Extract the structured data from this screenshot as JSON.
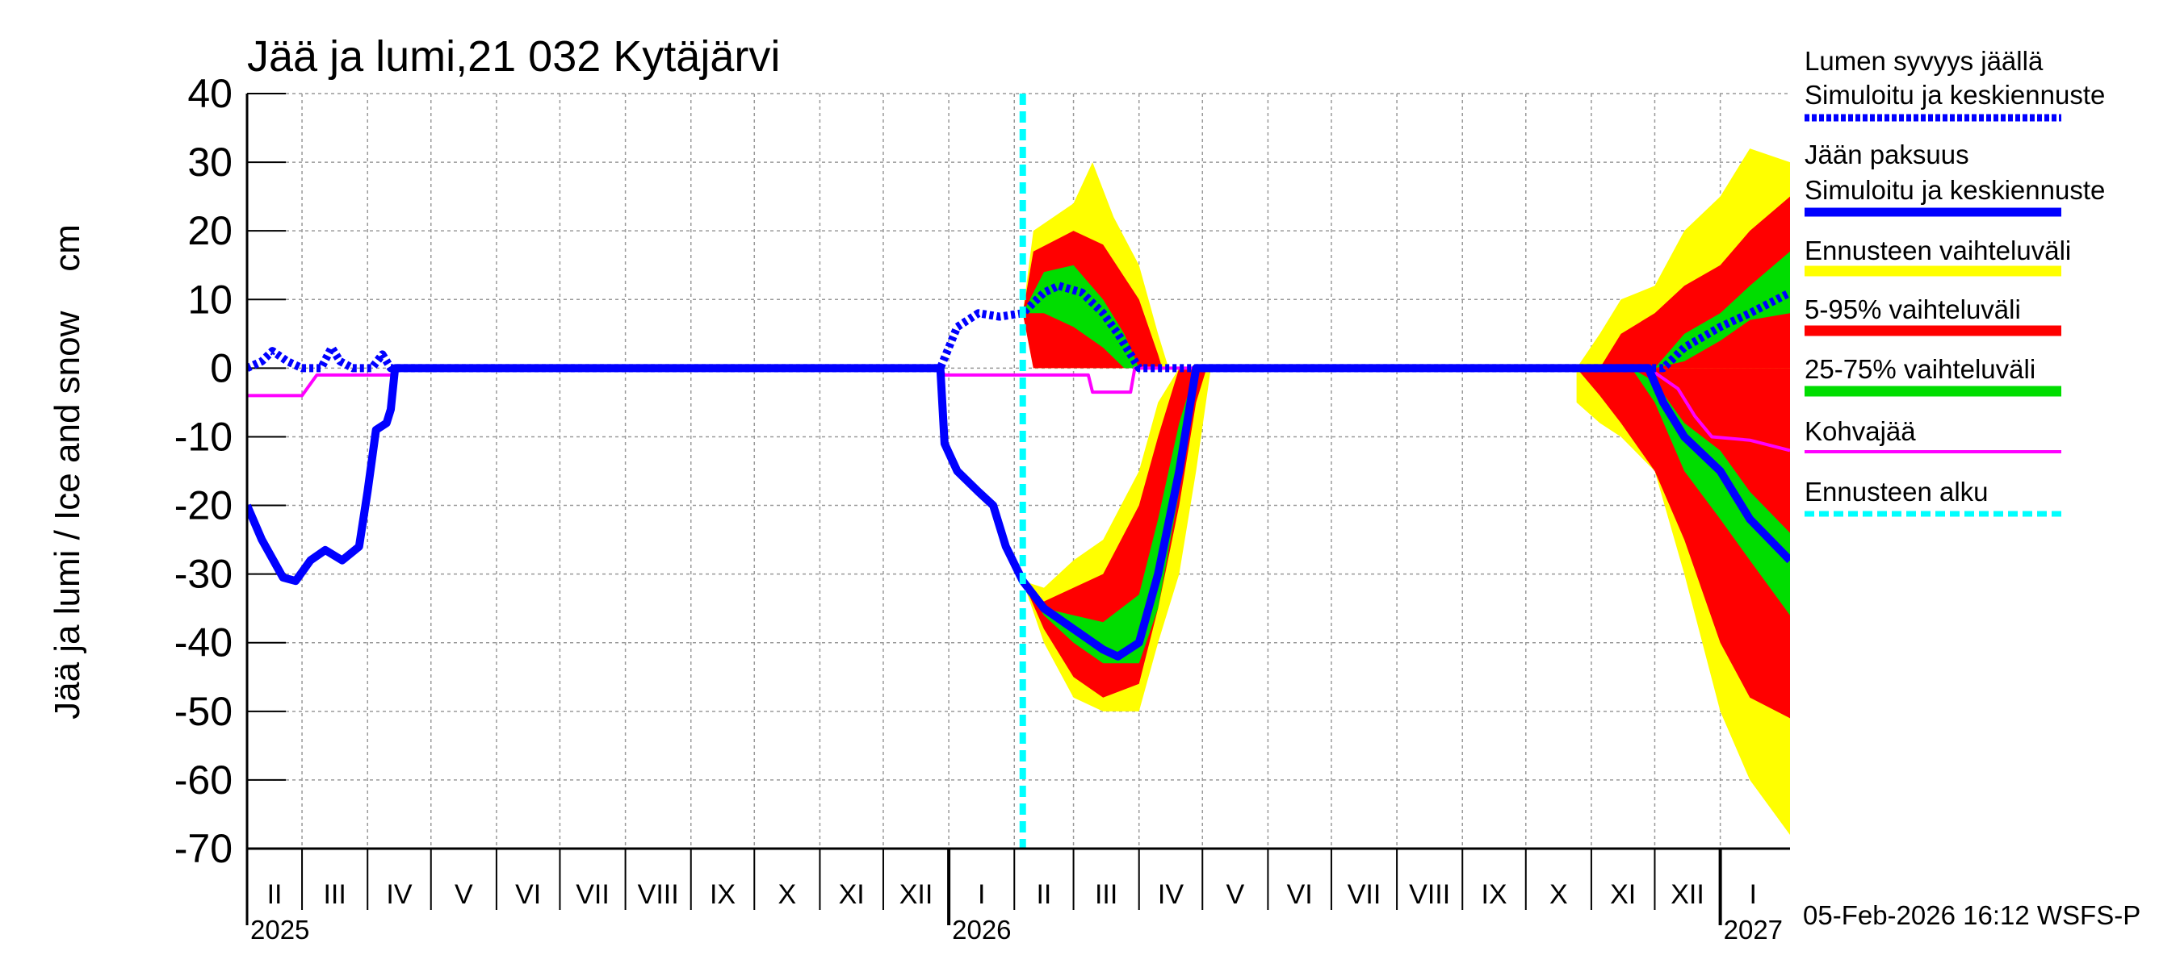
{
  "chart_data": {
    "type": "band-line",
    "title": "Jää ja lumi,21 032 Kytäjärvi",
    "y_label": "Jää ja lumi / Ice and snow    cm",
    "footer": "05-Feb-2026 16:12 WSFS-P",
    "xlim": [
      "2025-02-03",
      "2027-02-03"
    ],
    "ylim": [
      -70,
      40
    ],
    "yticks": [
      -70,
      -60,
      -50,
      -40,
      -30,
      -20,
      -10,
      0,
      10,
      20,
      30,
      40
    ],
    "grid": true,
    "xticks": [
      {
        "value": "2025-02-01",
        "label": "II"
      },
      {
        "value": "2025-03-01",
        "label": "III"
      },
      {
        "value": "2025-04-01",
        "label": "IV"
      },
      {
        "value": "2025-05-01",
        "label": "V"
      },
      {
        "value": "2025-06-01",
        "label": "VI"
      },
      {
        "value": "2025-07-01",
        "label": "VII"
      },
      {
        "value": "2025-08-01",
        "label": "VIII"
      },
      {
        "value": "2025-09-01",
        "label": "IX"
      },
      {
        "value": "2025-10-01",
        "label": "X"
      },
      {
        "value": "2025-11-01",
        "label": "XI"
      },
      {
        "value": "2025-12-01",
        "label": "XII"
      },
      {
        "value": "2026-01-01",
        "label": "I"
      },
      {
        "value": "2026-02-01",
        "label": "II"
      },
      {
        "value": "2026-03-01",
        "label": "III"
      },
      {
        "value": "2026-04-01",
        "label": "IV"
      },
      {
        "value": "2026-05-01",
        "label": "V"
      },
      {
        "value": "2026-06-01",
        "label": "VI"
      },
      {
        "value": "2026-07-01",
        "label": "VII"
      },
      {
        "value": "2026-08-01",
        "label": "VIII"
      },
      {
        "value": "2026-09-01",
        "label": "IX"
      },
      {
        "value": "2026-10-01",
        "label": "X"
      },
      {
        "value": "2026-11-01",
        "label": "XI"
      },
      {
        "value": "2026-12-01",
        "label": "XII"
      },
      {
        "value": "2027-01-01",
        "label": "I"
      }
    ],
    "year_labels": [
      {
        "value": "2025-01-01",
        "label": "2025"
      },
      {
        "value": "2026-01-01",
        "label": "2026"
      },
      {
        "value": "2027-01-01",
        "label": "2027"
      }
    ],
    "bands": [
      {
        "name": "Ennusteen vaihteluväli",
        "color": "#ffff00",
        "pieces": [
          {
            "x": [
              "2026-02-05",
              "2026-02-15",
              "2026-03-01",
              "2026-03-15",
              "2026-04-01",
              "2026-04-10",
              "2026-04-20",
              "2026-04-28",
              "2026-05-05"
            ],
            "upper": [
              -31,
              -32,
              -28,
              -25,
              -15,
              -5,
              0,
              0,
              0
            ],
            "lower": [
              -31,
              -40,
              -48,
              -50,
              -50,
              -40,
              -30,
              -15,
              0
            ]
          },
          {
            "x": [
              "2026-02-05",
              "2026-02-10",
              "2026-03-01",
              "2026-03-10",
              "2026-03-20",
              "2026-04-01",
              "2026-04-10",
              "2026-04-15"
            ],
            "upper": [
              8,
              20,
              24,
              30,
              22,
              15,
              5,
              0
            ],
            "lower": [
              8,
              0,
              0,
              0,
              0,
              0,
              0,
              0
            ]
          },
          {
            "x": [
              "2026-10-25",
              "2026-11-05",
              "2026-11-15",
              "2026-12-01",
              "2026-12-15",
              "2027-01-01",
              "2027-01-15",
              "2027-02-03"
            ],
            "upper": [
              0,
              0,
              0,
              0,
              0,
              0,
              0,
              0
            ],
            "lower": [
              -5,
              -8,
              -10,
              -15,
              -30,
              -50,
              -60,
              -68
            ]
          },
          {
            "x": [
              "2026-10-25",
              "2026-11-05",
              "2026-11-15",
              "2026-12-01",
              "2026-12-15",
              "2027-01-01",
              "2027-01-15",
              "2027-02-03"
            ],
            "upper": [
              0,
              5,
              10,
              12,
              20,
              25,
              32,
              30
            ],
            "lower": [
              0,
              0,
              0,
              0,
              0,
              0,
              0,
              0
            ]
          }
        ]
      },
      {
        "name": "5-95% vaihteluväli",
        "color": "#ff0000",
        "pieces": [
          {
            "x": [
              "2026-02-05",
              "2026-02-15",
              "2026-03-01",
              "2026-03-15",
              "2026-04-01",
              "2026-04-10",
              "2026-04-20",
              "2026-04-28",
              "2026-05-03"
            ],
            "upper": [
              -31,
              -34,
              -32,
              -30,
              -20,
              -10,
              0,
              0,
              0
            ],
            "lower": [
              -31,
              -38,
              -45,
              -48,
              -46,
              -35,
              -20,
              -5,
              0
            ]
          },
          {
            "x": [
              "2026-02-05",
              "2026-02-10",
              "2026-03-01",
              "2026-03-15",
              "2026-04-01",
              "2026-04-10",
              "2026-04-12"
            ],
            "upper": [
              8,
              17,
              20,
              18,
              10,
              2,
              0
            ],
            "lower": [
              8,
              0,
              0,
              0,
              0,
              0,
              0
            ]
          },
          {
            "x": [
              "2026-10-25",
              "2026-11-05",
              "2026-11-15",
              "2026-12-01",
              "2026-12-15",
              "2027-01-01",
              "2027-01-15",
              "2027-02-03"
            ],
            "upper": [
              0,
              0,
              0,
              0,
              0,
              0,
              0,
              0
            ],
            "lower": [
              0,
              -4,
              -8,
              -15,
              -25,
              -40,
              -48,
              -51
            ]
          },
          {
            "x": [
              "2026-11-05",
              "2026-11-15",
              "2026-12-01",
              "2026-12-15",
              "2027-01-01",
              "2027-01-15",
              "2027-02-03"
            ],
            "upper": [
              0,
              5,
              8,
              12,
              15,
              20,
              25
            ],
            "lower": [
              0,
              0,
              0,
              0,
              0,
              0,
              0
            ]
          }
        ]
      },
      {
        "name": "25-75% vaihteluväli",
        "color": "#00dd00",
        "pieces": [
          {
            "x": [
              "2026-02-05",
              "2026-02-15",
              "2026-03-01",
              "2026-03-15",
              "2026-04-01",
              "2026-04-10",
              "2026-04-20",
              "2026-04-28"
            ],
            "upper": [
              -31,
              -35,
              -36,
              -37,
              -33,
              -22,
              -8,
              0
            ],
            "lower": [
              -31,
              -36,
              -40,
              -43,
              -43,
              -35,
              -18,
              0
            ]
          },
          {
            "x": [
              "2026-02-05",
              "2026-02-15",
              "2026-03-01",
              "2026-03-15",
              "2026-03-25",
              "2026-04-01"
            ],
            "upper": [
              8,
              14,
              15,
              10,
              5,
              0
            ],
            "lower": [
              8,
              8,
              6,
              3,
              0,
              0
            ]
          },
          {
            "x": [
              "2026-11-20",
              "2026-12-01",
              "2026-12-15",
              "2027-01-01",
              "2027-01-15",
              "2027-02-03"
            ],
            "upper": [
              0,
              -2,
              -8,
              -12,
              -18,
              -24
            ],
            "lower": [
              0,
              -5,
              -15,
              -22,
              -28,
              -36
            ]
          },
          {
            "x": [
              "2026-12-01",
              "2026-12-15",
              "2027-01-01",
              "2027-01-15",
              "2027-02-03"
            ],
            "upper": [
              0,
              5,
              8,
              12,
              17
            ],
            "lower": [
              0,
              1,
              4,
              7,
              8
            ]
          }
        ]
      }
    ],
    "series": [
      {
        "name": "Lumen syvyys jäällä",
        "description": "Simuloitu ja keskiennuste",
        "color": "#0000ff",
        "style": "dotted",
        "x": [
          "2025-02-03",
          "2025-02-10",
          "2025-02-15",
          "2025-02-22",
          "2025-03-01",
          "2025-03-10",
          "2025-03-15",
          "2025-03-19",
          "2025-03-25",
          "2025-04-03",
          "2025-04-08",
          "2025-04-12",
          "2025-12-28",
          "2026-01-01",
          "2026-01-05",
          "2026-01-15",
          "2026-01-25",
          "2026-02-05",
          "2026-02-15",
          "2026-02-22",
          "2026-03-05",
          "2026-03-15",
          "2026-03-22",
          "2026-03-28",
          "2026-04-01",
          "2026-11-25",
          "2026-12-05",
          "2026-12-15",
          "2027-01-01",
          "2027-01-15",
          "2027-02-03"
        ],
        "values": [
          0,
          1,
          2.5,
          1,
          0,
          0,
          3,
          1,
          0,
          0,
          2,
          0,
          0,
          3,
          6,
          8,
          7.5,
          8,
          11,
          12,
          11,
          8,
          5,
          2,
          0,
          0,
          0,
          3,
          6,
          8,
          11
        ]
      },
      {
        "name": "Jään paksuus",
        "description": "Simuloitu ja keskiennuste",
        "color": "#0000ff",
        "style": "solid",
        "x": [
          "2025-02-03",
          "2025-02-10",
          "2025-02-20",
          "2025-02-26",
          "2025-03-05",
          "2025-03-12",
          "2025-03-20",
          "2025-03-28",
          "2025-04-01",
          "2025-04-05",
          "2025-04-10",
          "2025-04-12",
          "2025-04-14",
          "2025-12-28",
          "2025-12-30",
          "2026-01-05",
          "2026-01-15",
          "2026-01-22",
          "2026-01-28",
          "2026-02-05",
          "2026-02-15",
          "2026-03-01",
          "2026-03-15",
          "2026-03-22",
          "2026-04-01",
          "2026-04-10",
          "2026-04-20",
          "2026-04-28",
          "2026-11-28",
          "2026-12-05",
          "2026-12-15",
          "2027-01-01",
          "2027-01-15",
          "2027-02-03"
        ],
        "values": [
          -20,
          -25,
          -30.5,
          -31,
          -28,
          -26.5,
          -28,
          -26,
          -18,
          -9,
          -8,
          -6,
          0,
          0,
          -11,
          -15,
          -18,
          -20,
          -26,
          -31,
          -35,
          -38,
          -41,
          -42,
          -40,
          -30,
          -15,
          0,
          0,
          -5,
          -10,
          -15,
          -22,
          -28
        ]
      },
      {
        "name": "Kohvajää",
        "color": "#ff00ff",
        "style": "thin",
        "x": [
          "2025-02-03",
          "2025-03-01",
          "2025-03-08",
          "2025-04-14",
          "2025-04-15",
          "2025-12-28",
          "2025-12-30",
          "2026-03-08",
          "2026-03-10",
          "2026-03-28",
          "2026-03-30",
          "2026-11-28",
          "2026-12-12",
          "2026-12-20",
          "2026-12-28",
          "2027-01-15",
          "2027-02-03"
        ],
        "values": [
          -4,
          -4,
          -1,
          -1,
          0,
          0,
          -1,
          -1,
          -3.5,
          -3.5,
          0,
          0,
          -3,
          -7,
          -10,
          -10.5,
          -12
        ]
      }
    ],
    "forecast_start": {
      "name": "Ennusteen alku",
      "x": "2026-02-05",
      "color": "#00ffff"
    }
  }
}
